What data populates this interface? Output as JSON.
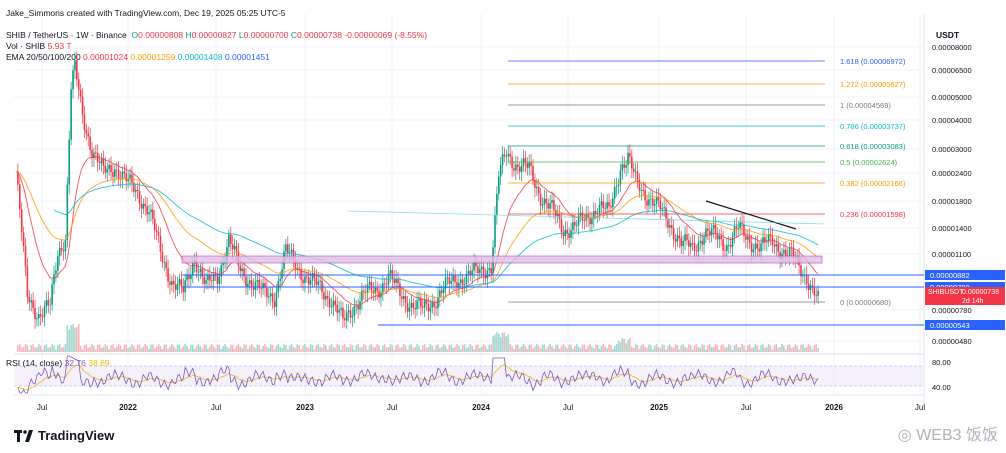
{
  "header": {
    "credit": "Jake_Simmons created with TradingView.com, Dec 19, 2025 05:25 UTC-5",
    "symbol": "SHIB / TetherUS · 1W · Binance",
    "ohlc": {
      "O": "0.00000808",
      "H": "0.00000827",
      "L": "0.00000700",
      "C": "0.00000738",
      "change": "-0.00000069 (-8.55%)"
    },
    "vol_label": "Vol · SHIB",
    "vol_value": "5.93 T",
    "ema_label": "EMA 20/50/100/200",
    "ema_values": [
      "0.00001024",
      "0.00001259",
      "0.00001408",
      "0.00001451"
    ],
    "currency": "USDT"
  },
  "rsi": {
    "label": "RSI (14, close)",
    "value1": "32.76",
    "value2": "38.69",
    "levels": [
      "80.00",
      "40.00"
    ]
  },
  "brand": {
    "logo_text": "TradingView",
    "watermark": "WEB3 饭饭"
  },
  "colors": {
    "up": "#089981",
    "down": "#f23645",
    "ema20": "#f23645",
    "ema50": "#ff9800",
    "ema100": "#00bcd4",
    "ema200": "#2962ff",
    "grid": "#f0f3fa"
  },
  "chart_data": {
    "type": "candlestick",
    "y_scale": "log",
    "ylim": [
      4.5e-06,
      9.2e-06
    ],
    "y_ticks": [
      "0.00008000",
      "0.00006500",
      "0.00005000",
      "0.00004000",
      "0.00003000",
      "0.00002400",
      "0.00001800",
      "0.00001400",
      "0.00001100",
      "0.00000780",
      "0.00000480"
    ],
    "x_ticks": [
      "Jul",
      "2022",
      "Jul",
      "2023",
      "Jul",
      "2024",
      "Jul",
      "2025",
      "Jul",
      "2026",
      "Jul"
    ],
    "fib_levels": [
      {
        "label": "1.618 (0.00006972)",
        "value": 6.972e-05,
        "color": "#2962ff"
      },
      {
        "label": "1.272 (0.00005627)",
        "value": 5.627e-05,
        "color": "#ff9800"
      },
      {
        "label": "1 (0.00004569)",
        "value": 4.569e-05,
        "color": "#787b86"
      },
      {
        "label": "0.786 (0.00003737)",
        "value": 3.737e-05,
        "color": "#00bcd4"
      },
      {
        "label": "0.618 (0.00003083)",
        "value": 3.083e-05,
        "color": "#089981"
      },
      {
        "label": "0.5 (0.00002624)",
        "value": 2.624e-05,
        "color": "#4caf50"
      },
      {
        "label": "0.382 (0.00002166)",
        "value": 2.166e-05,
        "color": "#ff9800"
      },
      {
        "label": "0.236 (0.00001598)",
        "value": 1.598e-05,
        "color": "#f23645"
      },
      {
        "label": "0 (0.00000680)",
        "value": 6.8e-06,
        "color": "#787b86"
      }
    ],
    "price_tags": [
      {
        "label": "0.00000882",
        "value": 8.82e-06,
        "color": "#2962ff"
      },
      {
        "label": "0.00000790",
        "value": 7.9e-06,
        "color": "#2962ff"
      },
      {
        "label": "SHIBUSDT",
        "value2": "0.00000738",
        "sub": "2d 14h",
        "value": 7.38e-06,
        "color": "#f23645"
      },
      {
        "label": "0.00000543",
        "value": 5.43e-06,
        "color": "#2962ff"
      }
    ]
  }
}
